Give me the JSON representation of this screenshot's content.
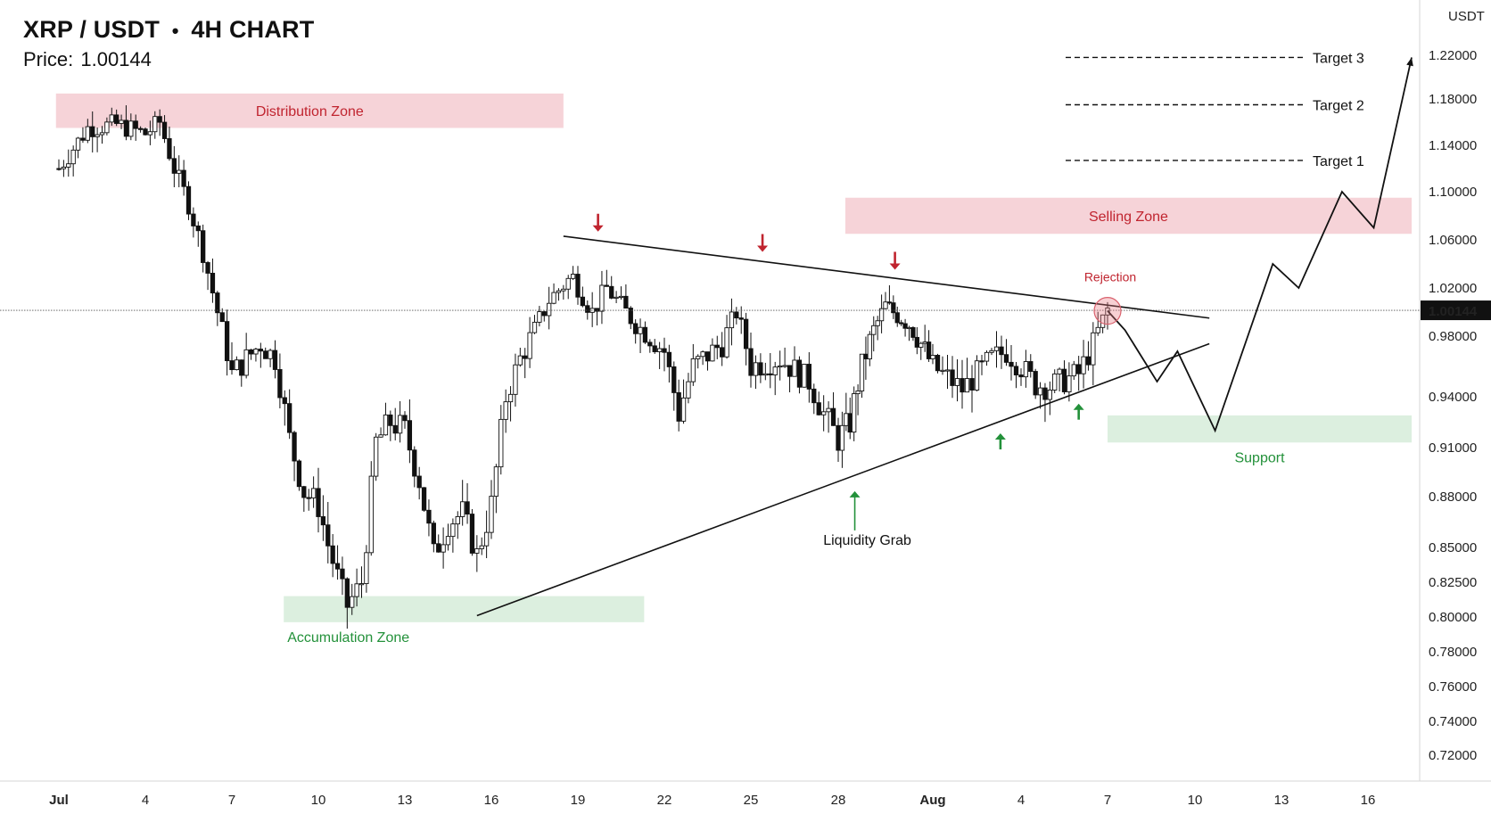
{
  "header": {
    "pair": "XRP / USDT",
    "separator": "•",
    "timeframe": "4H CHART",
    "price_label": "Price:",
    "price_value": "1.00144"
  },
  "colors": {
    "bull_body": "#ffffff",
    "bear_body": "#111111",
    "wick": "#111111",
    "red_zone": "#f6d3d8",
    "red_text": "#c0242f",
    "green_zone": "#dcefdf",
    "green_text": "#23913a",
    "arrow_red": "#c0242f",
    "arrow_green": "#23913a"
  },
  "chart_data": {
    "type": "candlestick",
    "y_axis_unit": "USDT",
    "y_ticks": [
      "1.22000",
      "1.18000",
      "1.14000",
      "1.10000",
      "1.06000",
      "1.02000",
      "0.98000",
      "0.94000",
      "0.91000",
      "0.88000",
      "0.85000",
      "0.82500",
      "0.80000",
      "0.78000",
      "0.76000",
      "0.74000",
      "0.72000"
    ],
    "current_price": 1.00144,
    "current_price_label": "1.00144",
    "x_ticks": [
      "Jul",
      "4",
      "7",
      "10",
      "13",
      "16",
      "19",
      "22",
      "25",
      "28",
      "Aug",
      "4",
      "7",
      "10",
      "13",
      "16"
    ],
    "x_tick_days": [
      1,
      4,
      7,
      10,
      13,
      16,
      19,
      22,
      25,
      28,
      32,
      35,
      38,
      41,
      44,
      47
    ],
    "candle_anchor_closes": [
      [
        1,
        1.12
      ],
      [
        2,
        1.155
      ],
      [
        3,
        1.158
      ],
      [
        4,
        1.15
      ],
      [
        4.5,
        1.16
      ],
      [
        5,
        1.12
      ],
      [
        5.5,
        1.09
      ],
      [
        6,
        1.05
      ],
      [
        6.5,
        1.0
      ],
      [
        7,
        0.955
      ],
      [
        8,
        0.975
      ],
      [
        8.5,
        0.965
      ],
      [
        9,
        0.915
      ],
      [
        9.5,
        0.883
      ],
      [
        10,
        0.875
      ],
      [
        10.5,
        0.84
      ],
      [
        11,
        0.808
      ],
      [
        11.5,
        0.825
      ],
      [
        12,
        0.913
      ],
      [
        12.5,
        0.925
      ],
      [
        13,
        0.92
      ],
      [
        13.5,
        0.89
      ],
      [
        14,
        0.845
      ],
      [
        14.5,
        0.865
      ],
      [
        15,
        0.87
      ],
      [
        15.5,
        0.845
      ],
      [
        16,
        0.875
      ],
      [
        16.5,
        0.94
      ],
      [
        17,
        0.965
      ],
      [
        17.5,
        0.985
      ],
      [
        18,
        1.01
      ],
      [
        18.8,
        1.03
      ],
      [
        19.5,
        1.0
      ],
      [
        20,
        1.02
      ],
      [
        21,
        0.99
      ],
      [
        22,
        0.97
      ],
      [
        22.5,
        0.93
      ],
      [
        23,
        0.96
      ],
      [
        24,
        0.975
      ],
      [
        24.5,
        1.0
      ],
      [
        25,
        0.96
      ],
      [
        26,
        0.965
      ],
      [
        27,
        0.95
      ],
      [
        27.5,
        0.93
      ],
      [
        28,
        0.915
      ],
      [
        28.5,
        0.925
      ],
      [
        29,
        0.96
      ],
      [
        29.5,
        0.985
      ],
      [
        30,
        1.005
      ],
      [
        31,
        0.99
      ],
      [
        32,
        0.96
      ],
      [
        33,
        0.945
      ],
      [
        34,
        0.965
      ],
      [
        34.5,
        0.97
      ],
      [
        35,
        0.96
      ],
      [
        35.5,
        0.948
      ],
      [
        36,
        0.947
      ],
      [
        37,
        0.955
      ],
      [
        37.5,
        0.975
      ],
      [
        38,
        1.002
      ]
    ],
    "distribution_zone": {
      "label": "Distribution Zone",
      "y_range": [
        1.155,
        1.185
      ],
      "day_range": [
        0.9,
        18.5
      ]
    },
    "selling_zone": {
      "label": "Selling Zone",
      "y_range": [
        1.065,
        1.095
      ],
      "day_range": [
        28.3,
        48.5
      ]
    },
    "accumulation_zone": {
      "label": "Accumulation Zone",
      "y_range": [
        0.797,
        0.815
      ],
      "day_range": [
        8.8,
        21.3
      ]
    },
    "support_zone": {
      "label": "Support",
      "y_range": [
        0.913,
        0.929
      ],
      "day_range": [
        38,
        48.5
      ]
    },
    "targets": [
      {
        "label": "Target 3",
        "price": 1.218
      },
      {
        "label": "Target 2",
        "price": 1.175
      },
      {
        "label": "Target 1",
        "price": 1.127
      }
    ],
    "upper_trendline": [
      [
        18.5,
        1.063
      ],
      [
        41.5,
        0.995
      ]
    ],
    "lower_trendline": [
      [
        15.5,
        0.801
      ],
      [
        41.5,
        0.975
      ]
    ],
    "rejection": {
      "label": "Rejection",
      "day": 38,
      "price": 1.001
    },
    "liquidity_grab": {
      "label": "Liquidity Grab",
      "day": 28.7
    },
    "red_arrow_days": [
      19.7,
      25.4,
      30.4
    ],
    "green_arrow_days": [
      28.7,
      34.3,
      37.0
    ],
    "projection_path": [
      [
        38,
        1.001
      ],
      [
        38.6,
        0.985
      ],
      [
        39.7,
        0.95
      ],
      [
        40.4,
        0.97
      ],
      [
        41.7,
        0.92
      ],
      [
        43.7,
        1.04
      ],
      [
        44.6,
        1.02
      ],
      [
        46.1,
        1.1
      ],
      [
        47.2,
        1.07
      ],
      [
        48.5,
        1.218
      ]
    ]
  }
}
